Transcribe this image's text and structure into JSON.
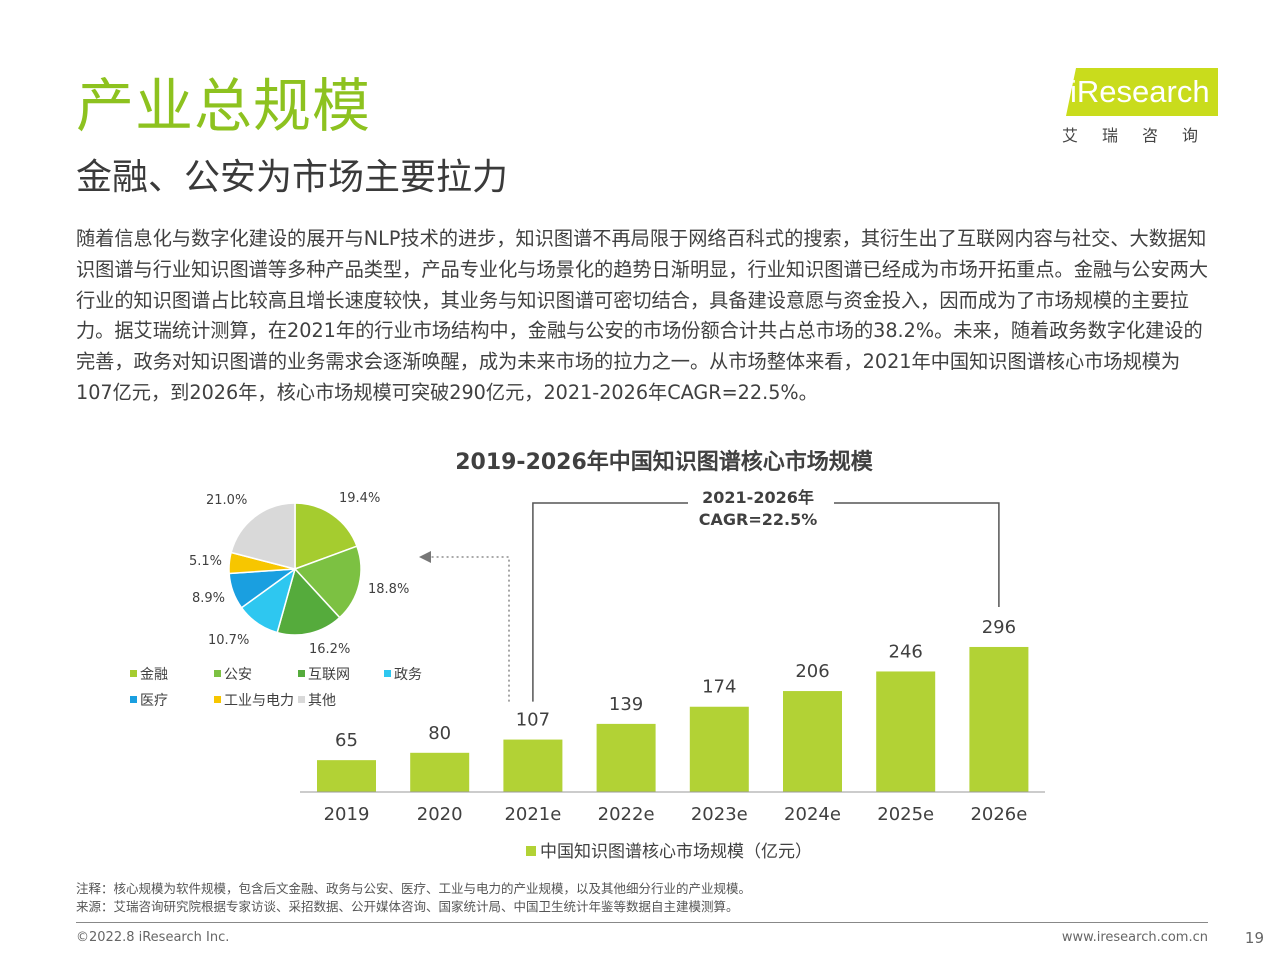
{
  "header": {
    "title": "产业总规模",
    "subtitle": "金融、公安为市场主要拉力",
    "logo_text": "iResearch",
    "logo_sub": "艾瑞咨询"
  },
  "body_paragraph": "随着信息化与数字化建设的展开与NLP技术的进步，知识图谱不再局限于网络百科式的搜索，其衍生出了互联网内容与社交、大数据知识图谱与行业知识图谱等多种产品类型，产品专业化与场景化的趋势日渐明显，行业知识图谱已经成为市场开拓重点。金融与公安两大行业的知识图谱占比较高且增长速度较快，其业务与知识图谱可密切结合，具备建设意愿与资金投入，因而成为了市场规模的主要拉力。据艾瑞统计测算，在2021年的行业市场结构中，金融与公安的市场份额合计共占总市场的38.2%。未来，随着政务数字化建设的完善，政务对知识图谱的业务需求会逐渐唤醒，成为未来市场的拉力之一。从市场整体来看，2021年中国知识图谱核心市场规模为107亿元，到2026年，核心市场规模可突破290亿元，2021-2026年CAGR=22.5%。",
  "chart_data": [
    {
      "type": "bar",
      "title": "2019-2026年中国知识图谱核心市场规模",
      "categories": [
        "2019",
        "2020",
        "2021e",
        "2022e",
        "2023e",
        "2024e",
        "2025e",
        "2026e"
      ],
      "series": [
        {
          "name": "中国知识图谱核心市场规模（亿元）",
          "values": [
            65,
            80,
            107,
            139,
            174,
            206,
            246,
            296
          ],
          "color": "#b2d235"
        }
      ],
      "annotation": {
        "line1": "2021-2026年",
        "line2": "CAGR=22.5%"
      },
      "ylim": [
        0,
        340
      ],
      "legend_position": "bottom"
    },
    {
      "type": "pie",
      "slices": [
        {
          "label": "金融",
          "value": 19.4,
          "value_label": "19.4%",
          "color": "#a5cc2f"
        },
        {
          "label": "公安",
          "value": 18.8,
          "value_label": "18.8%",
          "color": "#7cc142"
        },
        {
          "label": "互联网",
          "value": 16.2,
          "value_label": "16.2%",
          "color": "#55ab3c"
        },
        {
          "label": "政务",
          "value": 10.7,
          "value_label": "10.7%",
          "color": "#2ec7f0"
        },
        {
          "label": "医疗",
          "value": 8.9,
          "value_label": "8.9%",
          "color": "#1a9fe0"
        },
        {
          "label": "工业与电力",
          "value": 5.1,
          "value_label": "5.1%",
          "color": "#f7c600"
        },
        {
          "label": "其他",
          "value": 21.0,
          "value_label": "21.0%",
          "color": "#d9d9d9"
        }
      ],
      "legend_position": "bottom"
    }
  ],
  "notes": {
    "note": "注释：核心规模为软件规模，包含后文金融、政务与公安、医疗、工业与电力的产业规模，以及其他细分行业的产业规模。",
    "source": "来源：艾瑞咨询研究院根据专家访谈、采招数据、公开媒体咨询、国家统计局、中国卫生统计年鉴等数据自主建模测算。"
  },
  "footer": {
    "copyright": "©2022.8 iResearch Inc.",
    "website": "www.iresearch.com.cn",
    "page": "19"
  }
}
